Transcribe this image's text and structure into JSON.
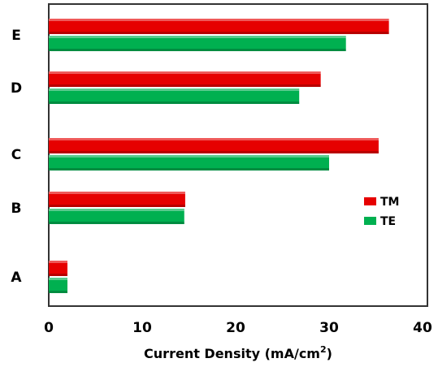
{
  "chart_data": {
    "type": "bar",
    "orientation": "horizontal",
    "categories": [
      "A",
      "B",
      "C",
      "D",
      "E"
    ],
    "series": [
      {
        "name": "TM",
        "color": "#e60000",
        "values": [
          2.0,
          14.6,
          35.3,
          29.1,
          36.4
        ]
      },
      {
        "name": "TE",
        "color": "#00b050",
        "values": [
          2.0,
          14.5,
          30.0,
          26.8,
          31.8
        ]
      }
    ],
    "xlabel": "Current Density (mA/cm",
    "xlabel_sup": "2",
    "xlabel_tail": ")",
    "ylabel": "",
    "xlim": [
      0,
      40
    ],
    "xticks": [
      "0",
      "10",
      "20",
      "30",
      "40"
    ],
    "grid": false,
    "legend": "right"
  }
}
